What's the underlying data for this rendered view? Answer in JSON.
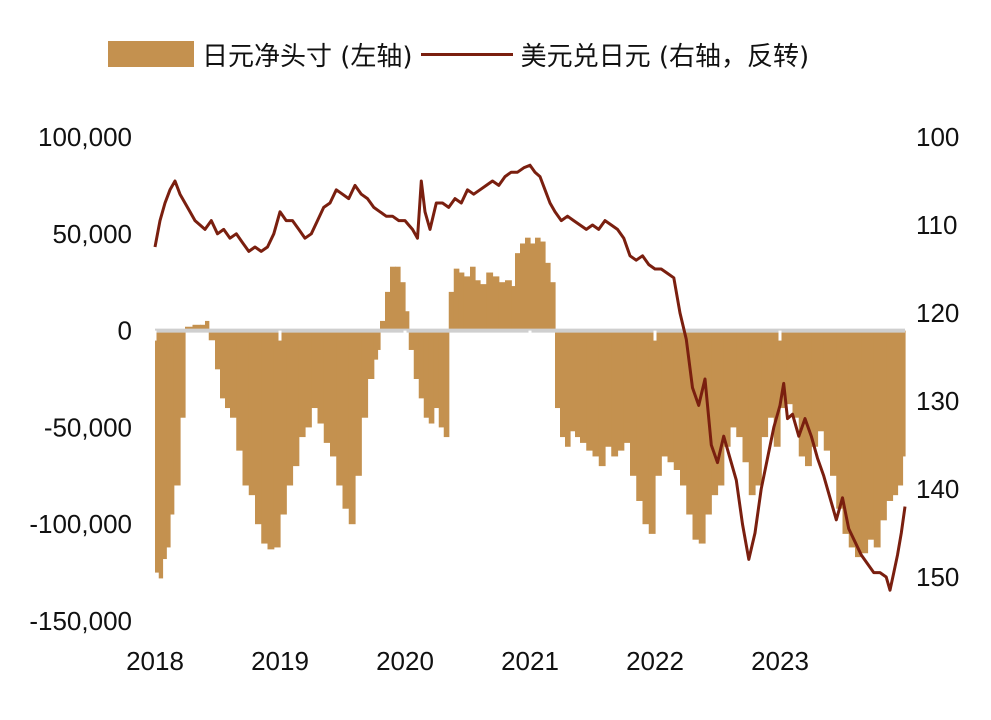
{
  "colors": {
    "bar": "#C4914F",
    "line": "#7A1F0F",
    "zero_line": "#cfcfcf"
  },
  "legend": {
    "series_bar": "日元净头寸 (左轴)",
    "series_line": "美元兑日元 (右轴，反转)"
  },
  "chart_data": {
    "type": "bar+line",
    "x_axis": {
      "ticks": [
        "2018",
        "2019",
        "2020",
        "2021",
        "2022",
        "2023"
      ],
      "range": [
        2018.0,
        2024.0
      ]
    },
    "y_left": {
      "ticks": [
        "100,000",
        "50,000",
        "0",
        "-50,000",
        "-100,000",
        "-150,000"
      ],
      "range": [
        -150000,
        100000
      ]
    },
    "y_right": {
      "ticks": [
        "100",
        "110",
        "120",
        "130",
        "140",
        "150"
      ],
      "range": [
        100,
        150
      ],
      "inverted": true
    },
    "series": [
      {
        "name": "日元净头寸 (左轴)",
        "kind": "bar",
        "axis": "left",
        "points": [
          [
            2018.0,
            -125000
          ],
          [
            2018.03,
            -128000
          ],
          [
            2018.06,
            -118000
          ],
          [
            2018.09,
            -112000
          ],
          [
            2018.12,
            -95000
          ],
          [
            2018.15,
            -80000
          ],
          [
            2018.2,
            -45000
          ],
          [
            2018.24,
            2000
          ],
          [
            2018.3,
            3000
          ],
          [
            2018.36,
            3000
          ],
          [
            2018.4,
            5000
          ],
          [
            2018.43,
            -5000
          ],
          [
            2018.48,
            -20000
          ],
          [
            2018.52,
            -35000
          ],
          [
            2018.56,
            -40000
          ],
          [
            2018.6,
            -45000
          ],
          [
            2018.65,
            -62000
          ],
          [
            2018.7,
            -80000
          ],
          [
            2018.75,
            -85000
          ],
          [
            2018.8,
            -100000
          ],
          [
            2018.85,
            -110000
          ],
          [
            2018.9,
            -113000
          ],
          [
            2018.95,
            -112000
          ],
          [
            2019.0,
            -95000
          ],
          [
            2019.05,
            -80000
          ],
          [
            2019.1,
            -70000
          ],
          [
            2019.15,
            -55000
          ],
          [
            2019.2,
            -50000
          ],
          [
            2019.25,
            -40000
          ],
          [
            2019.3,
            -48000
          ],
          [
            2019.35,
            -58000
          ],
          [
            2019.4,
            -65000
          ],
          [
            2019.45,
            -80000
          ],
          [
            2019.5,
            -92000
          ],
          [
            2019.55,
            -100000
          ],
          [
            2019.6,
            -75000
          ],
          [
            2019.65,
            -45000
          ],
          [
            2019.7,
            -25000
          ],
          [
            2019.75,
            -15000
          ],
          [
            2019.78,
            -10000
          ],
          [
            2019.8,
            5000
          ],
          [
            2019.84,
            20000
          ],
          [
            2019.88,
            33000
          ],
          [
            2019.92,
            33000
          ],
          [
            2019.96,
            25000
          ],
          [
            2020.0,
            10000
          ],
          [
            2020.03,
            -10000
          ],
          [
            2020.07,
            -25000
          ],
          [
            2020.11,
            -35000
          ],
          [
            2020.15,
            -45000
          ],
          [
            2020.19,
            -48000
          ],
          [
            2020.23,
            -40000
          ],
          [
            2020.27,
            -50000
          ],
          [
            2020.31,
            -55000
          ],
          [
            2020.35,
            20000
          ],
          [
            2020.39,
            32000
          ],
          [
            2020.43,
            30000
          ],
          [
            2020.47,
            28000
          ],
          [
            2020.52,
            33000
          ],
          [
            2020.56,
            26000
          ],
          [
            2020.6,
            24000
          ],
          [
            2020.65,
            30000
          ],
          [
            2020.7,
            28000
          ],
          [
            2020.75,
            25000
          ],
          [
            2020.8,
            26000
          ],
          [
            2020.85,
            23000
          ],
          [
            2020.88,
            40000
          ],
          [
            2020.92,
            45000
          ],
          [
            2020.96,
            48000
          ],
          [
            2021.0,
            45000
          ],
          [
            2021.04,
            48000
          ],
          [
            2021.08,
            46000
          ],
          [
            2021.12,
            35000
          ],
          [
            2021.16,
            25000
          ],
          [
            2021.2,
            -40000
          ],
          [
            2021.24,
            -55000
          ],
          [
            2021.28,
            -60000
          ],
          [
            2021.32,
            -52000
          ],
          [
            2021.36,
            -55000
          ],
          [
            2021.4,
            -58000
          ],
          [
            2021.45,
            -62000
          ],
          [
            2021.5,
            -65000
          ],
          [
            2021.55,
            -70000
          ],
          [
            2021.6,
            -60000
          ],
          [
            2021.65,
            -65000
          ],
          [
            2021.7,
            -62000
          ],
          [
            2021.75,
            -58000
          ],
          [
            2021.8,
            -75000
          ],
          [
            2021.85,
            -88000
          ],
          [
            2021.9,
            -100000
          ],
          [
            2021.95,
            -105000
          ],
          [
            2022.0,
            -75000
          ],
          [
            2022.05,
            -65000
          ],
          [
            2022.1,
            -68000
          ],
          [
            2022.15,
            -72000
          ],
          [
            2022.2,
            -80000
          ],
          [
            2022.25,
            -95000
          ],
          [
            2022.3,
            -108000
          ],
          [
            2022.35,
            -110000
          ],
          [
            2022.4,
            -95000
          ],
          [
            2022.45,
            -85000
          ],
          [
            2022.5,
            -80000
          ],
          [
            2022.55,
            -60000
          ],
          [
            2022.6,
            -50000
          ],
          [
            2022.65,
            -55000
          ],
          [
            2022.7,
            -68000
          ],
          [
            2022.75,
            -85000
          ],
          [
            2022.8,
            -80000
          ],
          [
            2022.85,
            -55000
          ],
          [
            2022.9,
            -45000
          ],
          [
            2022.95,
            -60000
          ],
          [
            2023.0,
            -40000
          ],
          [
            2023.05,
            -38000
          ],
          [
            2023.1,
            -45000
          ],
          [
            2023.15,
            -65000
          ],
          [
            2023.2,
            -70000
          ],
          [
            2023.25,
            -60000
          ],
          [
            2023.3,
            -52000
          ],
          [
            2023.35,
            -62000
          ],
          [
            2023.4,
            -75000
          ],
          [
            2023.45,
            -92000
          ],
          [
            2023.5,
            -105000
          ],
          [
            2023.55,
            -112000
          ],
          [
            2023.6,
            -117000
          ],
          [
            2023.65,
            -115000
          ],
          [
            2023.7,
            -108000
          ],
          [
            2023.75,
            -112000
          ],
          [
            2023.8,
            -98000
          ],
          [
            2023.85,
            -88000
          ],
          [
            2023.9,
            -85000
          ],
          [
            2023.94,
            -80000
          ],
          [
            2023.98,
            -65000
          ]
        ]
      },
      {
        "name": "美元兑日元 (右轴，反转)",
        "kind": "line",
        "axis": "right",
        "points": [
          [
            2018.0,
            112.5
          ],
          [
            2018.04,
            109.5
          ],
          [
            2018.08,
            107.5
          ],
          [
            2018.12,
            106.0
          ],
          [
            2018.16,
            105.0
          ],
          [
            2018.2,
            106.5
          ],
          [
            2018.24,
            107.5
          ],
          [
            2018.28,
            108.5
          ],
          [
            2018.32,
            109.5
          ],
          [
            2018.36,
            110.0
          ],
          [
            2018.4,
            110.5
          ],
          [
            2018.45,
            109.5
          ],
          [
            2018.5,
            111.0
          ],
          [
            2018.55,
            110.5
          ],
          [
            2018.6,
            111.5
          ],
          [
            2018.65,
            111.0
          ],
          [
            2018.7,
            112.0
          ],
          [
            2018.75,
            113.0
          ],
          [
            2018.8,
            112.5
          ],
          [
            2018.85,
            113.0
          ],
          [
            2018.9,
            112.5
          ],
          [
            2018.95,
            111.0
          ],
          [
            2019.0,
            108.5
          ],
          [
            2019.05,
            109.5
          ],
          [
            2019.1,
            109.5
          ],
          [
            2019.15,
            110.5
          ],
          [
            2019.2,
            111.5
          ],
          [
            2019.25,
            111.0
          ],
          [
            2019.3,
            109.5
          ],
          [
            2019.35,
            108.0
          ],
          [
            2019.4,
            107.5
          ],
          [
            2019.45,
            106.0
          ],
          [
            2019.5,
            106.5
          ],
          [
            2019.55,
            107.0
          ],
          [
            2019.6,
            105.5
          ],
          [
            2019.65,
            106.5
          ],
          [
            2019.7,
            107.0
          ],
          [
            2019.75,
            108.0
          ],
          [
            2019.8,
            108.5
          ],
          [
            2019.85,
            109.0
          ],
          [
            2019.9,
            109.0
          ],
          [
            2019.95,
            109.5
          ],
          [
            2020.0,
            109.5
          ],
          [
            2020.03,
            110.0
          ],
          [
            2020.06,
            110.5
          ],
          [
            2020.1,
            111.5
          ],
          [
            2020.13,
            105.0
          ],
          [
            2020.16,
            108.5
          ],
          [
            2020.2,
            110.5
          ],
          [
            2020.25,
            107.5
          ],
          [
            2020.3,
            107.5
          ],
          [
            2020.35,
            108.0
          ],
          [
            2020.4,
            107.0
          ],
          [
            2020.45,
            107.5
          ],
          [
            2020.5,
            106.0
          ],
          [
            2020.55,
            106.5
          ],
          [
            2020.6,
            106.0
          ],
          [
            2020.65,
            105.5
          ],
          [
            2020.7,
            105.0
          ],
          [
            2020.75,
            105.5
          ],
          [
            2020.8,
            104.5
          ],
          [
            2020.85,
            104.0
          ],
          [
            2020.9,
            104.0
          ],
          [
            2020.95,
            103.5
          ],
          [
            2021.0,
            103.2
          ],
          [
            2021.04,
            104.0
          ],
          [
            2021.08,
            104.5
          ],
          [
            2021.12,
            106.0
          ],
          [
            2021.16,
            107.5
          ],
          [
            2021.2,
            108.5
          ],
          [
            2021.25,
            109.5
          ],
          [
            2021.3,
            109.0
          ],
          [
            2021.35,
            109.5
          ],
          [
            2021.4,
            110.0
          ],
          [
            2021.45,
            110.5
          ],
          [
            2021.5,
            110.0
          ],
          [
            2021.55,
            110.5
          ],
          [
            2021.6,
            109.5
          ],
          [
            2021.65,
            110.0
          ],
          [
            2021.7,
            110.5
          ],
          [
            2021.75,
            111.5
          ],
          [
            2021.8,
            113.5
          ],
          [
            2021.85,
            114.0
          ],
          [
            2021.9,
            113.5
          ],
          [
            2021.95,
            114.5
          ],
          [
            2022.0,
            115.0
          ],
          [
            2022.05,
            115.0
          ],
          [
            2022.1,
            115.5
          ],
          [
            2022.15,
            116.0
          ],
          [
            2022.2,
            120.0
          ],
          [
            2022.25,
            123.0
          ],
          [
            2022.3,
            128.5
          ],
          [
            2022.35,
            130.5
          ],
          [
            2022.4,
            127.5
          ],
          [
            2022.45,
            135.0
          ],
          [
            2022.5,
            137.0
          ],
          [
            2022.55,
            134.0
          ],
          [
            2022.6,
            136.5
          ],
          [
            2022.65,
            139.0
          ],
          [
            2022.7,
            144.0
          ],
          [
            2022.75,
            148.0
          ],
          [
            2022.8,
            145.0
          ],
          [
            2022.85,
            140.0
          ],
          [
            2022.9,
            136.5
          ],
          [
            2022.95,
            133.0
          ],
          [
            2023.0,
            130.5
          ],
          [
            2023.03,
            128.0
          ],
          [
            2023.06,
            132.0
          ],
          [
            2023.1,
            131.5
          ],
          [
            2023.15,
            134.0
          ],
          [
            2023.2,
            132.0
          ],
          [
            2023.25,
            134.0
          ],
          [
            2023.3,
            136.5
          ],
          [
            2023.35,
            138.5
          ],
          [
            2023.4,
            141.0
          ],
          [
            2023.45,
            143.5
          ],
          [
            2023.5,
            141.0
          ],
          [
            2023.55,
            144.5
          ],
          [
            2023.6,
            146.0
          ],
          [
            2023.65,
            147.5
          ],
          [
            2023.7,
            148.5
          ],
          [
            2023.75,
            149.5
          ],
          [
            2023.8,
            149.5
          ],
          [
            2023.85,
            150.0
          ],
          [
            2023.88,
            151.5
          ],
          [
            2023.91,
            149.5
          ],
          [
            2023.94,
            147.5
          ],
          [
            2023.97,
            145.0
          ],
          [
            2024.0,
            142.0
          ]
        ]
      }
    ]
  }
}
